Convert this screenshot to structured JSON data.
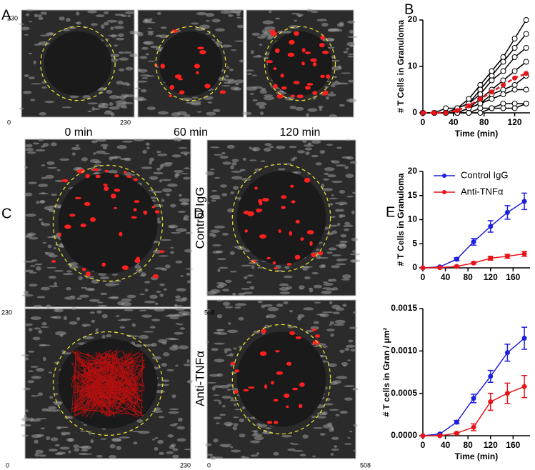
{
  "panel_labels": [
    "A",
    "B",
    "C",
    "D",
    "E"
  ],
  "panel_a": {
    "captions": [
      "0 min",
      "60 min",
      "120 min"
    ],
    "axis_labels": [
      "230",
      "0",
      "230"
    ]
  },
  "panel_c": {
    "axis_labels": [
      "230",
      "0",
      "230"
    ]
  },
  "panel_d": {
    "conditions": [
      "Control IgG",
      "Anti-TNFα"
    ],
    "axis_labels": [
      "508",
      "0",
      "508"
    ]
  },
  "chart_data": [
    {
      "type": "line",
      "xlabel": "Time (min)",
      "ylabel": "# T  Cells in Granuloma",
      "x": [
        0,
        15,
        30,
        45,
        60,
        75,
        90,
        105,
        120,
        135
      ],
      "xlim": [
        0,
        140
      ],
      "xticks": [
        0,
        40,
        80,
        120
      ],
      "ylim": [
        0,
        20
      ],
      "yticks": [
        0,
        10,
        20
      ],
      "series": [
        {
          "color": "#000000",
          "marker": "open",
          "values": [
            0,
            0,
            1,
            1,
            3,
            6,
            9,
            12,
            16,
            20
          ]
        },
        {
          "color": "#000000",
          "marker": "open",
          "values": [
            0,
            0,
            0,
            1,
            2,
            5,
            8,
            11,
            14,
            17
          ]
        },
        {
          "color": "#000000",
          "marker": "open",
          "values": [
            0,
            0,
            0,
            1,
            2,
            4,
            7,
            9,
            12,
            14
          ]
        },
        {
          "color": "#000000",
          "marker": "open",
          "values": [
            0,
            0,
            0,
            0,
            1,
            3,
            5,
            7,
            9,
            11
          ]
        },
        {
          "color": "#000000",
          "marker": "open",
          "values": [
            0,
            0,
            0,
            0,
            1,
            2,
            4,
            5,
            6,
            8
          ]
        },
        {
          "color": "#000000",
          "marker": "open",
          "values": [
            0,
            0,
            0,
            0,
            1,
            2,
            3,
            4,
            5,
            5
          ]
        },
        {
          "color": "#000000",
          "marker": "open",
          "values": [
            0,
            0,
            0,
            0,
            0,
            1,
            1,
            2,
            2,
            2
          ]
        },
        {
          "color": "#000000",
          "marker": "open",
          "values": [
            0,
            0,
            0,
            0,
            0,
            0,
            1,
            1,
            1,
            2
          ]
        },
        {
          "color": "#e8141b",
          "marker": "filled",
          "dashed": true,
          "values": [
            0,
            0,
            0,
            0.5,
            1.5,
            3,
            4.5,
            6,
            7.5,
            8.5
          ]
        }
      ]
    },
    {
      "type": "line",
      "ylabel": "# T Cells in Granuloma",
      "legend": "upper left",
      "x": [
        0,
        30,
        60,
        90,
        120,
        150,
        180
      ],
      "xlim": [
        0,
        190
      ],
      "xticks": [
        0,
        40,
        80,
        120,
        160
      ],
      "ylim": [
        0,
        20
      ],
      "yticks": [
        0,
        5,
        10,
        15,
        20
      ],
      "series": [
        {
          "name": "Control IgG",
          "color": "#1f1fe0",
          "marker": "filled",
          "values": [
            0,
            0.2,
            1.8,
            5.4,
            8.6,
            11.5,
            13.8
          ],
          "errors": [
            0,
            0.1,
            0.3,
            0.7,
            1.2,
            1.4,
            1.7
          ]
        },
        {
          "name": "Anti-TNFα",
          "color": "#e8141b",
          "marker": "filled",
          "values": [
            0,
            0.05,
            0.3,
            1.0,
            2.0,
            2.4,
            2.9
          ],
          "errors": [
            0,
            0,
            0.1,
            0.2,
            0.4,
            0.4,
            0.5
          ]
        }
      ]
    },
    {
      "type": "line",
      "xlabel": "Time (min)",
      "ylabel": "# T cells in Gran / μm²",
      "x": [
        0,
        30,
        60,
        90,
        120,
        150,
        180
      ],
      "xlim": [
        0,
        190
      ],
      "xticks": [
        0,
        40,
        80,
        120,
        160
      ],
      "ylim": [
        0,
        0.0015
      ],
      "yticks": [
        {
          "value": 0,
          "label": "0.0000"
        },
        {
          "value": 0.0005,
          "label": "0.0005"
        },
        {
          "value": 0.001,
          "label": "0.0010"
        },
        {
          "value": 0.0015,
          "label": "0.0015"
        }
      ],
      "series": [
        {
          "color": "#1f1fe0",
          "marker": "filled",
          "values": [
            0,
            2e-05,
            0.00016,
            0.00044,
            0.0007,
            0.00098,
            0.00115
          ],
          "errors": [
            0,
            0,
            2e-05,
            5e-05,
            7e-05,
            0.0001,
            0.00013
          ]
        },
        {
          "color": "#e8141b",
          "marker": "filled",
          "values": [
            0,
            0,
            3e-05,
            0.0001,
            0.0004,
            0.0005,
            0.00058
          ],
          "errors": [
            0,
            0,
            1e-05,
            4e-05,
            0.0001,
            0.00012,
            0.00013
          ]
        }
      ]
    }
  ]
}
